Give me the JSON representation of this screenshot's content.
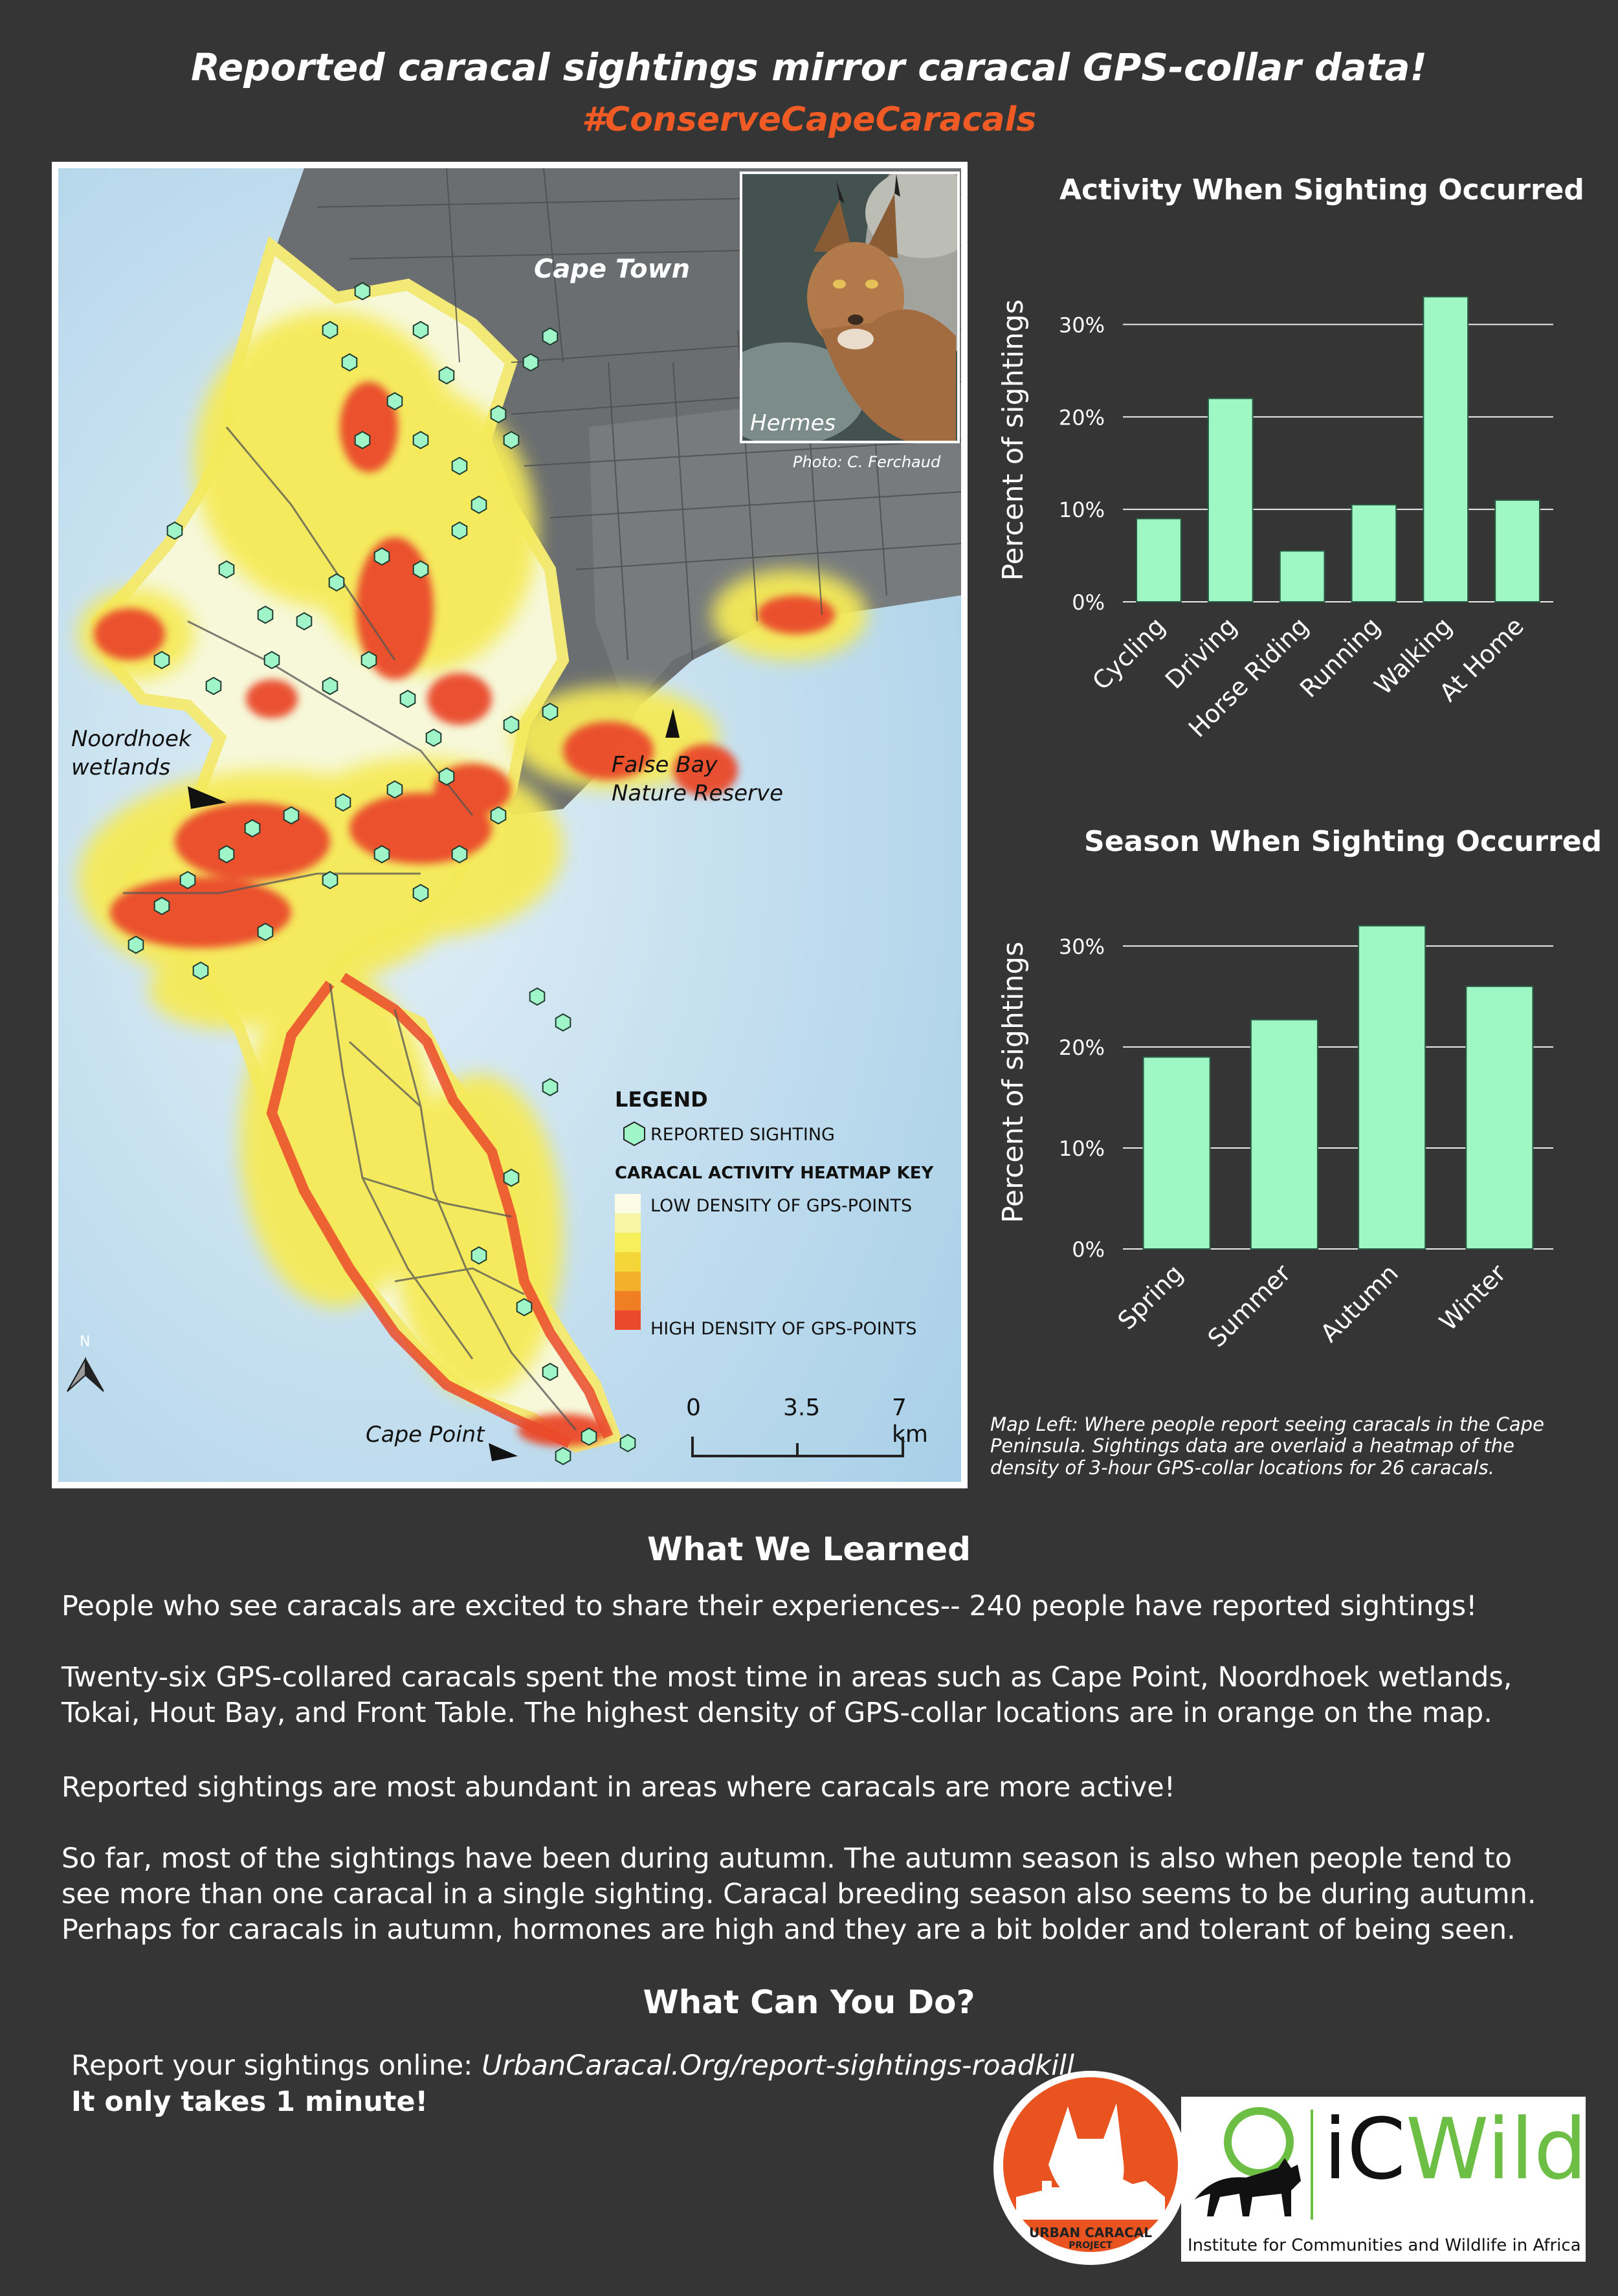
{
  "header": {
    "title": "Reported caracal sightings mirror caracal GPS-collar data!",
    "hashtag": "#ConserveCapeCaracals"
  },
  "map": {
    "labels": {
      "cape_town": "Cape Town",
      "noordhoek_line1": "Noordhoek",
      "noordhoek_line2": "wetlands",
      "false_bay_line1": "False Bay",
      "false_bay_line2": "Nature Reserve",
      "cape_point": "Cape Point",
      "north": "N"
    },
    "photo": {
      "name": "Hermes",
      "credit": "Photo: C. Ferchaud"
    },
    "legend": {
      "title": "LEGEND",
      "sighting": "REPORTED SIGHTING",
      "heatmap_title": "CARACAL ACTIVITY HEATMAP KEY",
      "low": "LOW DENSITY OF GPS-POINTS",
      "high": "HIGH DENSITY OF GPS-POINTS",
      "heat_colors": [
        "#fbfbe6",
        "#f8f6a6",
        "#f7ef5b",
        "#f5d638",
        "#f3b02b",
        "#ef7f22",
        "#ea4a2b"
      ],
      "sighting_color": "#9ff5c8"
    },
    "scale": {
      "ticks": [
        "0",
        "3.5",
        "7 km"
      ]
    },
    "note": "Map Left: Where people report seeing caracals in the Cape Peninsula. Sightings data are overlaid a heatmap of the density of 3-hour GPS-collar locations for 26 caracals."
  },
  "chart_data": [
    {
      "type": "bar",
      "title": "Activity When Sighting Occurred",
      "ylabel": "Percent of sightings",
      "categories": [
        "Cycling",
        "Driving",
        "Horse Riding",
        "Running",
        "Walking",
        "At Home"
      ],
      "values": [
        9,
        22,
        5.5,
        10.5,
        33,
        11
      ],
      "ylim": [
        0,
        35
      ],
      "yticks": [
        "0%",
        "10%",
        "20%",
        "30%"
      ],
      "bar_color": "#9ff7c4",
      "grid": true
    },
    {
      "type": "bar",
      "title": "Season When Sighting Occurred",
      "ylabel": "Percent of sightings",
      "categories": [
        "Spring",
        "Summer",
        "Autumn",
        "Winter"
      ],
      "values": [
        19,
        22.7,
        32,
        26
      ],
      "ylim": [
        0,
        33
      ],
      "yticks": [
        "0%",
        "10%",
        "20%",
        "30%"
      ],
      "bar_color": "#9ff7c4",
      "grid": true
    }
  ],
  "learned": {
    "heading": "What We Learned",
    "p1": "People who see caracals are excited to share their experiences-- 240 people have reported sightings!",
    "p2": "Twenty-six GPS-collared caracals spent the most time in areas such as Cape Point, Noordhoek wetlands, Tokai, Hout Bay, and Front Table. The highest density of GPS-collar locations are in orange on the map.",
    "p3": "Reported sightings are most abundant in areas where caracals are more active!",
    "p4": "So far, most of the sightings have been during autumn. The autumn season is also when people tend to see more than one caracal in a single sighting. Caracal breeding season also seems to be during autumn. Perhaps for caracals in autumn, hormones are high and they are a bit bolder and tolerant of being seen."
  },
  "action": {
    "heading": "What Can You Do?",
    "report_prefix": "Report your sightings online: ",
    "report_url": "UrbanCaracal.Org/report-sightings-roadkill",
    "note": "It only takes 1 minute!"
  },
  "logos": {
    "ucp_line1": "URBAN CARACAL",
    "ucp_line2": "PROJECT",
    "icwild_i": "iC",
    "icwild_w": "Wild",
    "icwild_sub": "Institute for Communities and Wildlife in Africa"
  }
}
